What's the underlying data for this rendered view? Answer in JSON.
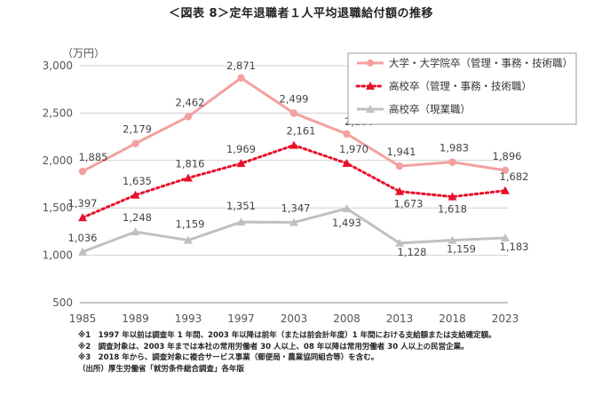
{
  "title": "＜図表 8＞定年退職者１人平均退職給付額の推移",
  "chart_data": {
    "type": "line",
    "unit_label": "（万円）",
    "categories": [
      "1985",
      "1989",
      "1993",
      "1997",
      "2003",
      "2008",
      "2013",
      "2018",
      "2023"
    ],
    "ylim": [
      500,
      3000
    ],
    "yticks": [
      "500",
      "1,000",
      "1,500",
      "2,000",
      "2,500",
      "3,000"
    ],
    "ytick_values": [
      500,
      1000,
      1500,
      2000,
      2500,
      3000
    ],
    "series": [
      {
        "name": "大学・大学院卒（管理・事務・技術職）",
        "color": "#f4a0a0",
        "dash": "solid",
        "marker": "circle",
        "values": [
          1885,
          2179,
          2462,
          2871,
          2499,
          2280,
          1941,
          1983,
          1896
        ],
        "labels": [
          "1,885",
          "2,179",
          "2,462",
          "2,871",
          "2,499",
          "2,280",
          "1,941",
          "1,983",
          "1,896"
        ]
      },
      {
        "name": "高校卒（管理・事務・技術職）",
        "color": "#e8102a",
        "dash": "dotted",
        "marker": "triangle",
        "values": [
          1397,
          1635,
          1816,
          1969,
          2161,
          1970,
          1673,
          1618,
          1682
        ],
        "labels": [
          "1,397",
          "1,635",
          "1,816",
          "1,969",
          "2,161",
          "1,970",
          "1,673",
          "1,618",
          "1,682"
        ]
      },
      {
        "name": "高校卒（現業職）",
        "color": "#c0c0c0",
        "dash": "solid",
        "marker": "triangle",
        "values": [
          1036,
          1248,
          1159,
          1351,
          1347,
          1493,
          1128,
          1159,
          1183
        ],
        "labels": [
          "1,036",
          "1,248",
          "1,159",
          "1,351",
          "1,347",
          "1,493",
          "1,128",
          "1,159",
          "1,183"
        ]
      }
    ],
    "grid": true,
    "legend": "top-right"
  },
  "notes": [
    "※1　1997 年以前は調査年 1 年間、2003 年以降は前年（または前会計年度）1 年間における支給額または支給確定額。",
    "※2　調査対象は、2003 年までは本社の常用労働者 30 人以上、08 年以降は常用労働者 30 人以上の民営企業。",
    "※3　2018 年から、調査対象に複合サービス事業（郵便局・農業協同組合等）を含む。",
    "（出所）厚生労働省「就労条件総合調査」各年版"
  ]
}
